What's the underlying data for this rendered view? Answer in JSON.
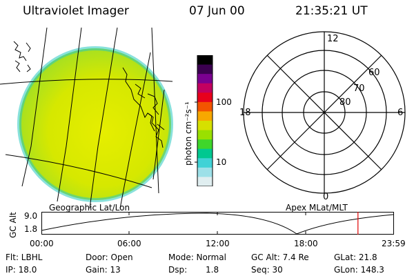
{
  "header": {
    "instrument": "Ultraviolet Imager",
    "date": "07 Jun 00",
    "time": "21:35:21 UT"
  },
  "image_panel": {
    "label": "Geographic Lat/Lon"
  },
  "colorbar": {
    "unit_label": "photon cm⁻²s⁻¹",
    "tick_100": "100",
    "tick_10": "10",
    "colors": [
      "#000000",
      "#3b0050",
      "#7a0090",
      "#c20060",
      "#e8001c",
      "#f35400",
      "#f7a800",
      "#d6e000",
      "#9ae000",
      "#3fd62a",
      "#00c890",
      "#40d2d6",
      "#9de0e8",
      "#e0eef0"
    ]
  },
  "polar_plot": {
    "label": "Apex MLat/MLT",
    "mlt_12": "12",
    "mlt_18": "18",
    "mlt_6": "6",
    "mlt_0": "0",
    "lat_60": "60",
    "lat_70": "70",
    "lat_80": "80"
  },
  "altitude_plot": {
    "ylabel": "GC Alt",
    "ytick_top": "9.0",
    "ytick_bottom": "1.8",
    "xticks": [
      "00:00",
      "06:00",
      "12:00",
      "18:00",
      "23:59"
    ],
    "marker_time_hours": 21.59
  },
  "status": {
    "flt": "Flt: LBHL",
    "door": "Door: Open",
    "mode": "Mode: Normal",
    "gc_alt": "GC Alt: 7.4 Re",
    "glat": "GLat: 21.8",
    "ip": "IP: 18.0",
    "gain": "Gain: 13",
    "dsp_label": "Dsp:",
    "dsp_value": "1.8",
    "seq": "Seq: 30",
    "glon": "GLon: 148.3"
  }
}
